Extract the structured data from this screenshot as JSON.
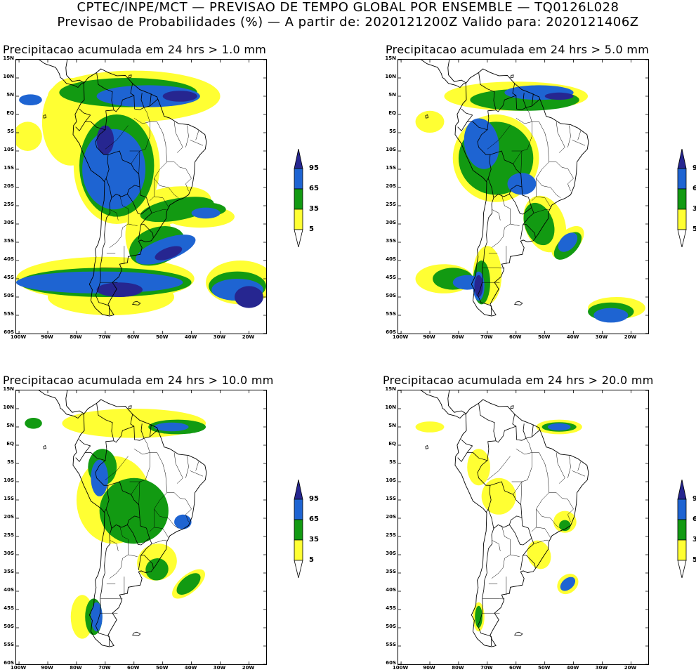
{
  "header": {
    "line1": "CPTEC/INPE/MCT — PREVISAO DE TEMPO GLOBAL POR ENSEMBLE — TQ0126L028",
    "line2": "Previsao de Probabilidades (%) —  A partir de: 2020121200Z  Valido para: 2020121406Z"
  },
  "colors": {
    "p5": "#ffff33",
    "p35": "#129a12",
    "p65": "#1e64d2",
    "p95": "#262690",
    "land_outline": "#000000"
  },
  "axes": {
    "lat_labels": [
      "15N",
      "10N",
      "5N",
      "EQ",
      "5S",
      "10S",
      "15S",
      "20S",
      "25S",
      "30S",
      "35S",
      "40S",
      "45S",
      "50S",
      "55S",
      "60S"
    ],
    "lon_labels": [
      "100W",
      "90W",
      "80W",
      "70W",
      "60W",
      "50W",
      "40W",
      "30W",
      "20W"
    ]
  },
  "legend": {
    "levels": [
      "95",
      "65",
      "35",
      "5"
    ]
  },
  "panels": [
    {
      "title": "Precipitacao acumulada em 24 hrs > 1.0 mm",
      "threshold_mm": 1.0
    },
    {
      "title": "Precipitacao acumulada em 24 hrs > 5.0 mm",
      "threshold_mm": 5.0
    },
    {
      "title": "Precipitacao acumulada em 24 hrs > 10.0 mm",
      "threshold_mm": 10.0
    },
    {
      "title": "Precipitacao acumulada em 24 hrs > 20.0 mm",
      "threshold_mm": 20.0
    }
  ]
}
